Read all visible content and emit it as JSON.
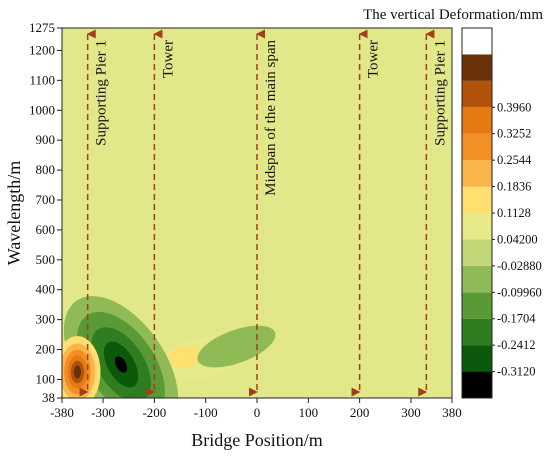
{
  "chart_data": {
    "type": "heatmap",
    "subtype": "filled-contour",
    "title": "The vertical Deformation/mm",
    "xlabel": "Bridge Position/m",
    "ylabel": "Wavelength/m",
    "xlim": [
      -380,
      380
    ],
    "ylim": [
      38,
      1275
    ],
    "x_ticks": [
      -380,
      -300,
      -200,
      -100,
      0,
      100,
      200,
      300,
      380
    ],
    "y_ticks": [
      38,
      100,
      200,
      300,
      400,
      500,
      600,
      700,
      800,
      900,
      1000,
      1100,
      1200,
      1275
    ],
    "colorbar": {
      "levels": [
        -0.312,
        -0.2412,
        -0.1704,
        -0.0996,
        -0.0288,
        0.042,
        0.1128,
        0.1836,
        0.2544,
        0.3252,
        0.396
      ],
      "labels": [
        "-0.3120",
        "-0.2412",
        "-0.1704",
        "-0.09960",
        "-0.02880",
        "0.04200",
        "0.1128",
        "0.1836",
        "0.2544",
        "0.3252",
        "0.3960"
      ],
      "colors": [
        "#000000",
        "#0b5a0b",
        "#2f7d1f",
        "#5a9a36",
        "#8fba56",
        "#c2d878",
        "#e6ea88",
        "#ffe070",
        "#fbb54a",
        "#f29025",
        "#e57a12",
        "#b2520b",
        "#6a3208",
        "#ffffff"
      ]
    },
    "background_value_range": [
      -0.0288,
      0.042
    ],
    "features": [
      {
        "kind": "peak",
        "x": -350,
        "y": 125,
        "value": 0.39
      },
      {
        "kind": "trough",
        "x": -270,
        "y": 130,
        "value": -0.3
      },
      {
        "kind": "positive-band",
        "x_range": [
          -180,
          -40
        ],
        "y_range": [
          120,
          280
        ],
        "value": 0.07
      },
      {
        "kind": "negative-band",
        "x_range": [
          -110,
          50
        ],
        "y_range": [
          120,
          300
        ],
        "value": -0.06
      }
    ],
    "annotations": [
      {
        "label": "Supporting Pier 1",
        "x": -330
      },
      {
        "label": "Tower",
        "x": -200
      },
      {
        "label": "Midspan of the main span",
        "x": 0
      },
      {
        "label": "Tower",
        "x": 200
      },
      {
        "label": "Supporting Pier 1",
        "x": 330
      }
    ],
    "annotation_color": "#a0401a"
  }
}
